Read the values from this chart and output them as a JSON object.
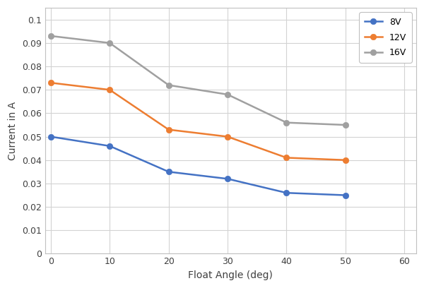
{
  "x": [
    0,
    10,
    20,
    30,
    40,
    50
  ],
  "series": [
    {
      "label": "8V",
      "color": "#4472C4",
      "marker": "o",
      "values": [
        0.05,
        0.046,
        0.035,
        0.032,
        0.026,
        0.025
      ]
    },
    {
      "label": "12V",
      "color": "#ED7D31",
      "marker": "o",
      "values": [
        0.073,
        0.07,
        0.053,
        0.05,
        0.041,
        0.04
      ]
    },
    {
      "label": "16V",
      "color": "#A0A0A0",
      "marker": "o",
      "values": [
        0.093,
        0.09,
        0.072,
        0.068,
        0.056,
        0.055
      ]
    }
  ],
  "xlabel": "Float Angle (deg)",
  "ylabel": "Current in A",
  "xlim": [
    -1,
    62
  ],
  "ylim": [
    0,
    0.105
  ],
  "xticks": [
    0,
    10,
    20,
    30,
    40,
    50,
    60
  ],
  "yticks": [
    0,
    0.01,
    0.02,
    0.03,
    0.04,
    0.05,
    0.06,
    0.07,
    0.08,
    0.09,
    0.1
  ],
  "ytick_labels": [
    "0",
    "0.01",
    "0.02",
    "0.03",
    "0.04",
    "0.05",
    "0.06",
    "0.07",
    "0.08",
    "0.09",
    "0.1"
  ],
  "grid": true,
  "legend_loc": "upper right",
  "background_color": "#ffffff",
  "marker_size": 6,
  "line_width": 1.8,
  "grid_color": "#D3D3D3",
  "spine_color": "#C0C0C0"
}
